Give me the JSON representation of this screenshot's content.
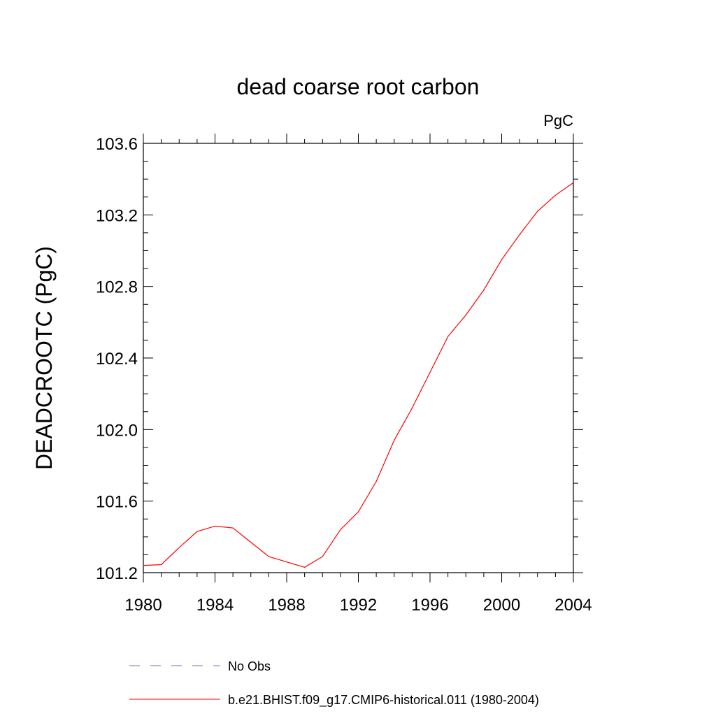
{
  "chart_data": {
    "type": "line",
    "title": "dead coarse root carbon",
    "units_label": "PgC",
    "ylabel": "DEADCROOTC  (PgC)",
    "xlabel": "",
    "xlim": [
      1980,
      2004
    ],
    "ylim": [
      101.2,
      103.6
    ],
    "xticks": [
      1980,
      1984,
      1988,
      1992,
      1996,
      2000,
      2004
    ],
    "yticks": [
      101.2,
      101.6,
      102.0,
      102.4,
      102.8,
      103.2,
      103.6
    ],
    "xtick_labels": [
      "1980",
      "1984",
      "1988",
      "1992",
      "1996",
      "2000",
      "2004"
    ],
    "ytick_labels": [
      "101.2",
      "101.6",
      "102.0",
      "102.4",
      "102.8",
      "103.2",
      "103.6"
    ],
    "grid": false,
    "legend_position": "bottom",
    "series": [
      {
        "name": "No Obs",
        "color": "#7b68c9",
        "style": "dashed",
        "x": [],
        "y": []
      },
      {
        "name": "b.e21.BHIST.f09_g17.CMIP6-historical.011 (1980-2004)",
        "color": "#ff0000",
        "style": "solid",
        "x": [
          1980,
          1981,
          1982,
          1983,
          1984,
          1985,
          1986,
          1987,
          1988,
          1989,
          1990,
          1991,
          1992,
          1993,
          1994,
          1995,
          1996,
          1997,
          1998,
          1999,
          2000,
          2001,
          2002,
          2003,
          2004
        ],
        "y": [
          101.24,
          101.245,
          101.34,
          101.43,
          101.46,
          101.45,
          101.37,
          101.29,
          101.26,
          101.23,
          101.29,
          101.44,
          101.54,
          101.71,
          101.94,
          102.12,
          102.32,
          102.52,
          102.64,
          102.78,
          102.95,
          103.09,
          103.22,
          103.31,
          103.38
        ]
      }
    ]
  }
}
